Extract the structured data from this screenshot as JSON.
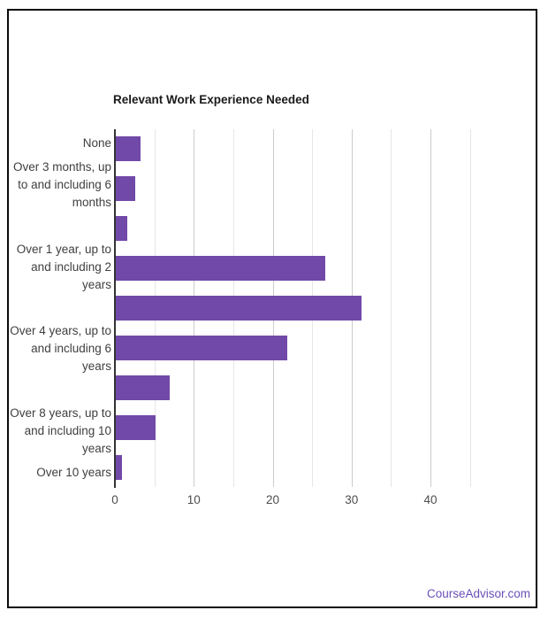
{
  "frame": {
    "border_color": "#0a0a0a",
    "background": "#ffffff"
  },
  "footer": {
    "brand": "CourseAdvisor.com",
    "color": "#6a4fb8"
  },
  "chart_data": {
    "type": "bar",
    "orientation": "horizontal",
    "title": "Relevant Work Experience Needed",
    "title_color": "#1a1a1a",
    "categories": [
      "None",
      "Over 3 months, up to and including 6 months",
      "",
      "Over 1 year, up to and including 2 years",
      "",
      "Over 4 years, up to and including 6 years",
      "",
      "Over 8 years, up to and including 10 years",
      "Over 10 years"
    ],
    "values": [
      3.2,
      2.6,
      1.6,
      26.7,
      31.3,
      21.8,
      6.9,
      5.1,
      0.9
    ],
    "xlabel": "",
    "ylabel": "",
    "x_ticks": [
      0,
      10,
      20,
      30,
      40
    ],
    "xlim": [
      0,
      47.5
    ],
    "gridline_step": 5,
    "grid": true,
    "legend": "none",
    "bar_color": "#7149a8",
    "axis_color": "#333333",
    "gridline_major_color": "#cccccc",
    "gridline_minor_color": "#e6e6e6",
    "label_color": "#3f3f3f",
    "tick_color": "#4d4d4d"
  }
}
